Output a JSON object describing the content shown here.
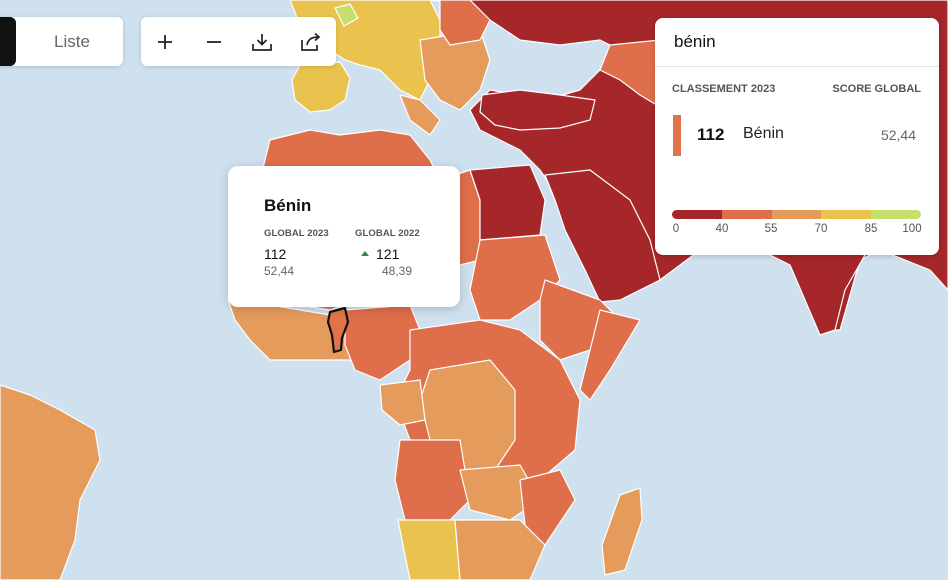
{
  "map": {
    "colors": {
      "ocean": "#cfe0ee",
      "very_serious": "#a6272a",
      "difficult": "#df6e4b",
      "problematic": "#e49b5c",
      "satisfactory": "#e9c34e",
      "good": "#c4df6a",
      "selected_outline": "#111111"
    },
    "selected_country": "Bénin"
  },
  "toolbar": {
    "list_label": "Liste",
    "zoom_in_icon": "plus-icon",
    "zoom_out_icon": "minus-icon",
    "download_icon": "download-icon",
    "share_icon": "share-icon"
  },
  "tooltip": {
    "country": "Bénin",
    "label_2023": "GLOBAL 2023",
    "rank_2023": "112",
    "score_2023": "52,44",
    "label_2022": "GLOBAL 2022",
    "rank_2022": "121",
    "score_2022": "48,39",
    "trend_icon": "arrow-up-icon",
    "trend_color": "#2a8a4a"
  },
  "panel": {
    "search_value": "bénin",
    "col_rank_header": "CLASSEMENT 2023",
    "col_score_header": "SCORE GLOBAL",
    "result": {
      "rank": "112",
      "name": "Bénin",
      "score": "52,44",
      "color": "#e0734a"
    },
    "legend": {
      "colors": [
        "#a6272a",
        "#df6e4b",
        "#e49b5c",
        "#e9c34e",
        "#c4df6a"
      ],
      "ticks": [
        "0",
        "40",
        "55",
        "70",
        "85",
        "100"
      ]
    }
  }
}
